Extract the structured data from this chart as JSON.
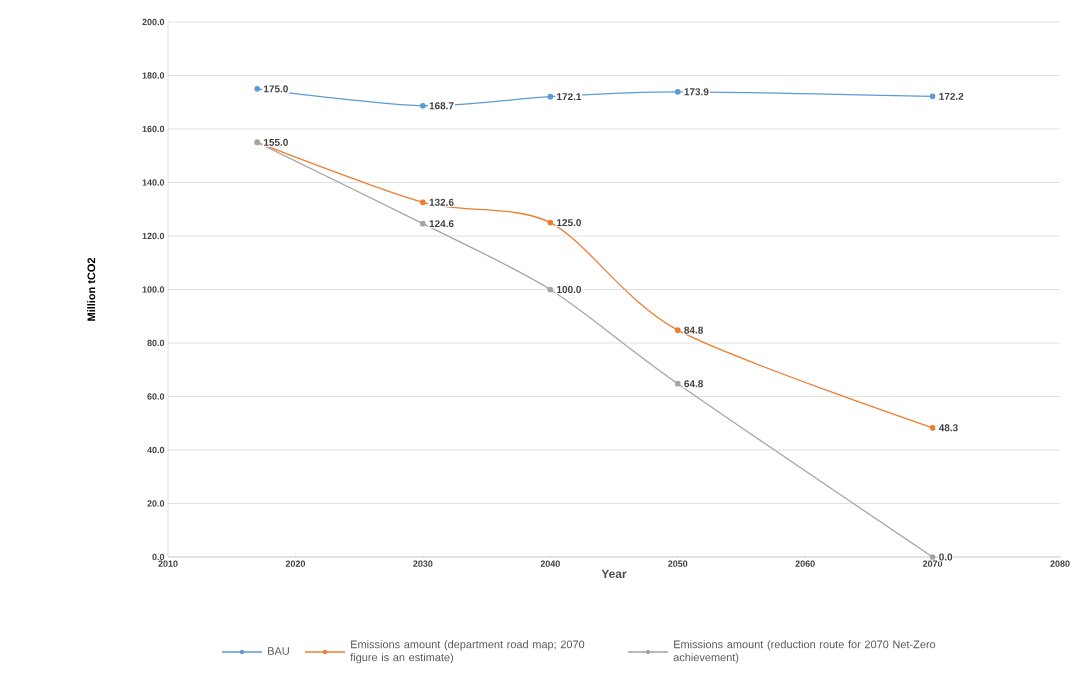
{
  "chart_data": {
    "type": "line",
    "xlabel": "Year",
    "ylabel": "Million tCO2",
    "x": [
      2017,
      2030,
      2040,
      2050,
      2070
    ],
    "xlim": [
      2010,
      2080
    ],
    "xticks": [
      2010,
      2020,
      2030,
      2040,
      2050,
      2060,
      2070,
      2080
    ],
    "ylim": [
      0,
      200
    ],
    "yticks": [
      {
        "value": 0,
        "label": "0.0"
      },
      {
        "value": 20,
        "label": "20.0"
      },
      {
        "value": 40,
        "label": "40.0"
      },
      {
        "value": 60,
        "label": "60.0"
      },
      {
        "value": 80,
        "label": "80.0"
      },
      {
        "value": 100,
        "label": "100.0"
      },
      {
        "value": 120,
        "label": "120.0"
      },
      {
        "value": 140,
        "label": "140.0"
      },
      {
        "value": 160,
        "label": "160.0"
      },
      {
        "value": 180,
        "label": "180.0"
      },
      {
        "value": 200,
        "label": "200.0"
      }
    ],
    "grid": "y",
    "legend": "bottom",
    "marker": "circle",
    "line_style": "solid",
    "series": [
      {
        "name": "BAU",
        "color": "#5b9bd5",
        "values": [
          175.0,
          168.7,
          172.1,
          173.9,
          172.2
        ],
        "value_labels": [
          "175.0",
          "168.7",
          "172.1",
          "173.9",
          "172.2"
        ]
      },
      {
        "name": "Emissions amount (department road map; 2070 figure is an estimate)",
        "color": "#ed7d31",
        "values": [
          155.0,
          132.6,
          125.0,
          84.8,
          48.3
        ],
        "value_labels": [
          "155.0",
          "132.6",
          "125.0",
          "84.8",
          "48.3"
        ]
      },
      {
        "name": "Emissions amount (reduction route for 2070 Net-Zero achievement)",
        "color": "#a5a5a5",
        "values": [
          155.0,
          124.6,
          100.0,
          64.8,
          0.0
        ],
        "value_labels": [
          null,
          "124.6",
          "100.0",
          "64.8",
          "0.0"
        ]
      }
    ]
  }
}
